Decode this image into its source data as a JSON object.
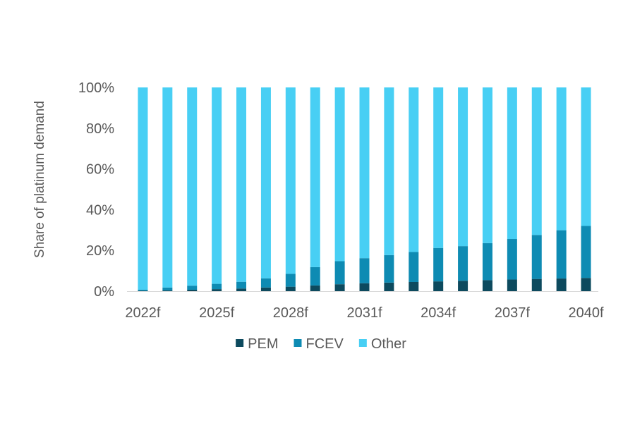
{
  "chart_data": {
    "type": "bar",
    "stacked": true,
    "title": "",
    "xlabel": "",
    "ylabel": "Share of platinum demand",
    "ylim": [
      0,
      100
    ],
    "yticks": [
      "0%",
      "20%",
      "40%",
      "60%",
      "80%",
      "100%"
    ],
    "ytick_values": [
      0,
      20,
      40,
      60,
      80,
      100
    ],
    "categories": [
      "2022f",
      "2023f",
      "2024f",
      "2025f",
      "2026f",
      "2027f",
      "2028f",
      "2029f",
      "2030f",
      "2031f",
      "2032f",
      "2033f",
      "2034f",
      "2035f",
      "2036f",
      "2037f",
      "2038f",
      "2039f",
      "2040f"
    ],
    "xtick_labels": [
      "2022f",
      "2025f",
      "2028f",
      "2031f",
      "2034f",
      "2037f",
      "2040f"
    ],
    "series": [
      {
        "name": "PEM",
        "color": "#0d4a5e",
        "values": [
          0.2,
          0.4,
          0.7,
          1.0,
          1.3,
          1.8,
          2.2,
          2.8,
          3.4,
          3.9,
          4.2,
          4.5,
          4.8,
          5.1,
          5.4,
          5.7,
          6.0,
          6.2,
          6.5
        ]
      },
      {
        "name": "FCEV",
        "color": "#0e8bb3",
        "values": [
          0.5,
          1.4,
          2.0,
          2.6,
          3.3,
          4.5,
          6.3,
          9.0,
          11.3,
          12.3,
          13.5,
          14.7,
          16.4,
          17.0,
          18.2,
          19.9,
          21.6,
          23.7,
          25.5
        ]
      },
      {
        "name": "Other",
        "color": "#48cff4",
        "values": [
          99.3,
          98.2,
          97.3,
          96.4,
          95.4,
          93.7,
          91.5,
          88.2,
          85.3,
          83.8,
          82.3,
          80.8,
          78.8,
          77.9,
          76.4,
          74.4,
          72.4,
          70.1,
          68.0
        ]
      }
    ],
    "legend": {
      "position": "bottom",
      "entries": [
        "PEM",
        "FCEV",
        "Other"
      ]
    },
    "grid": false
  }
}
